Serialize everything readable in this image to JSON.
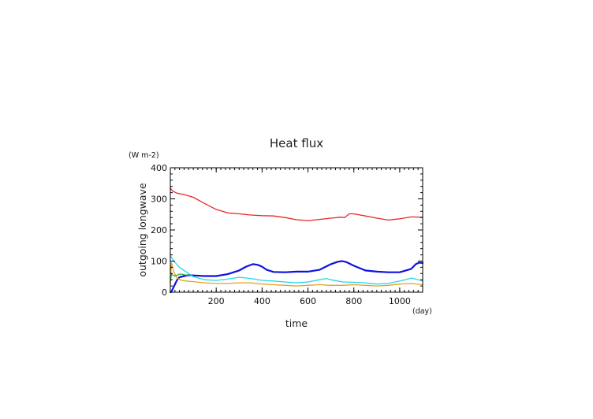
{
  "chart_data": {
    "type": "line",
    "title": "Heat flux",
    "xlabel": "time",
    "ylabel": "outgoing longwave",
    "x_unit": "(day)",
    "y_unit": "(W m-2)",
    "xlim": [
      0,
      1100
    ],
    "ylim": [
      0,
      400
    ],
    "x_ticks": [
      200,
      400,
      600,
      800,
      1000
    ],
    "y_ticks": [
      0,
      100,
      200,
      300,
      400
    ],
    "x_minor_step": 20,
    "y_minor_step": 20,
    "grid": false,
    "legend": "none",
    "series": [
      {
        "color": "#e8262b",
        "x": [
          0,
          10,
          30,
          60,
          100,
          150,
          200,
          250,
          300,
          350,
          400,
          450,
          500,
          550,
          600,
          650,
          700,
          740,
          760,
          780,
          800,
          850,
          900,
          950,
          1000,
          1050,
          1100
        ],
        "values": [
          335,
          325,
          318,
          314,
          305,
          285,
          266,
          255,
          252,
          248,
          246,
          245,
          240,
          233,
          230,
          234,
          238,
          241,
          240,
          252,
          252,
          245,
          238,
          232,
          236,
          242,
          241
        ]
      },
      {
        "color": "#1010e0",
        "x": [
          0,
          5,
          10,
          20,
          30,
          40,
          60,
          80,
          100,
          150,
          200,
          250,
          300,
          330,
          360,
          380,
          400,
          420,
          450,
          500,
          550,
          600,
          650,
          700,
          730,
          750,
          770,
          800,
          850,
          900,
          950,
          1000,
          1050,
          1070,
          1085,
          1100
        ],
        "values": [
          0,
          2,
          10,
          25,
          40,
          48,
          52,
          55,
          54,
          52,
          52,
          58,
          70,
          82,
          90,
          88,
          82,
          72,
          65,
          64,
          66,
          66,
          72,
          90,
          98,
          100,
          96,
          85,
          70,
          66,
          64,
          64,
          75,
          90,
          95,
          94
        ]
      },
      {
        "color": "#22d8e8",
        "x": [
          0,
          5,
          10,
          20,
          30,
          40,
          60,
          80,
          100,
          150,
          200,
          250,
          300,
          350,
          400,
          450,
          500,
          550,
          600,
          650,
          680,
          700,
          750,
          800,
          850,
          900,
          950,
          1000,
          1050,
          1070,
          1100
        ],
        "values": [
          118,
          112,
          105,
          96,
          88,
          80,
          70,
          60,
          50,
          40,
          38,
          42,
          48,
          44,
          38,
          36,
          33,
          30,
          33,
          40,
          44,
          40,
          33,
          32,
          30,
          26,
          28,
          36,
          45,
          42,
          36
        ]
      },
      {
        "color": "#e8a020",
        "x": [
          0,
          5,
          15,
          30,
          50,
          80,
          100,
          150,
          200,
          250,
          300,
          350,
          400,
          450,
          500,
          550,
          600,
          650,
          700,
          750,
          800,
          850,
          900,
          950,
          1000,
          1050,
          1100
        ],
        "values": [
          25,
          95,
          65,
          45,
          38,
          35,
          34,
          30,
          28,
          28,
          30,
          30,
          26,
          24,
          22,
          20,
          22,
          24,
          22,
          22,
          24,
          22,
          20,
          22,
          26,
          28,
          24
        ]
      },
      {
        "color": "#2aa838",
        "x": [
          0,
          5,
          10,
          20,
          30,
          40,
          50,
          60,
          70,
          80
        ],
        "values": [
          30,
          60,
          55,
          52,
          55,
          58,
          58,
          56,
          55,
          55
        ]
      }
    ]
  }
}
